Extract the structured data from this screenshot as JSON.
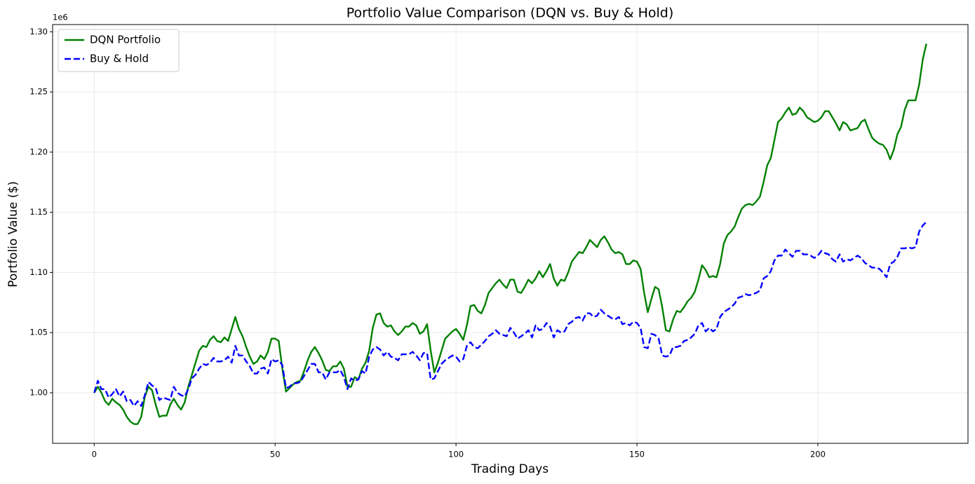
{
  "chart_data": {
    "type": "line",
    "title": "Portfolio Value Comparison (DQN vs. Buy & Hold)",
    "x_label": "Trading Days",
    "y_label": "Portfolio Value ($)",
    "y_offset_label": "1e6",
    "grid": true,
    "legend": "upper left",
    "xlim": [
      -11.5,
      241.5
    ],
    "ylim": [
      0.958,
      1.306
    ],
    "xticks": [
      0,
      50,
      100,
      150,
      200
    ],
    "yticks": [
      {
        "value": 1.0,
        "label": "1.00"
      },
      1.05,
      {
        "value": 1.1,
        "label": "1.10"
      },
      1.15,
      {
        "value": 1.2,
        "label": "1.20"
      },
      1.25,
      {
        "value": 1.3,
        "label": "1.30"
      }
    ],
    "x": [
      0,
      1,
      2,
      3,
      4,
      5,
      6,
      7,
      8,
      9,
      10,
      11,
      12,
      13,
      14,
      15,
      16,
      17,
      18,
      19,
      20,
      21,
      22,
      23,
      24,
      25,
      26,
      27,
      28,
      29,
      30,
      31,
      32,
      33,
      34,
      35,
      36,
      37,
      38,
      39,
      40,
      41,
      42,
      43,
      44,
      45,
      46,
      47,
      48,
      49,
      50,
      51,
      52,
      53,
      54,
      55,
      56,
      57,
      58,
      59,
      60,
      61,
      62,
      63,
      64,
      65,
      66,
      67,
      68,
      69,
      70,
      71,
      72,
      73,
      74,
      75,
      76,
      77,
      78,
      79,
      80,
      81,
      82,
      83,
      84,
      85,
      86,
      87,
      88,
      89,
      90,
      91,
      92,
      93,
      94,
      95,
      96,
      97,
      98,
      99,
      100,
      101,
      102,
      103,
      104,
      105,
      106,
      107,
      108,
      109,
      110,
      111,
      112,
      113,
      114,
      115,
      116,
      117,
      118,
      119,
      120,
      121,
      122,
      123,
      124,
      125,
      126,
      127,
      128,
      129,
      130,
      131,
      132,
      133,
      134,
      135,
      136,
      137,
      138,
      139,
      140,
      141,
      142,
      143,
      144,
      145,
      146,
      147,
      148,
      149,
      150,
      151,
      152,
      153,
      154,
      155,
      156,
      157,
      158,
      159,
      160,
      161,
      162,
      163,
      164,
      165,
      166,
      167,
      168,
      169,
      170,
      171,
      172,
      173,
      174,
      175,
      176,
      177,
      178,
      179,
      180,
      181,
      182,
      183,
      184,
      185,
      186,
      187,
      188,
      189,
      190,
      191,
      192,
      193,
      194,
      195,
      196,
      197,
      198,
      199,
      200,
      201,
      202,
      203,
      204,
      205,
      206,
      207,
      208,
      209,
      210,
      211,
      212,
      213,
      214,
      215,
      216,
      217,
      218,
      219,
      220,
      221,
      222,
      223,
      224,
      225,
      226,
      227,
      228,
      229,
      230
    ],
    "series": [
      {
        "name": "DQN Portfolio",
        "color": "#008000",
        "dash": false,
        "values": [
          1.0,
          1.005,
          1.0,
          0.993,
          0.99,
          0.995,
          0.992,
          0.99,
          0.986,
          0.98,
          0.976,
          0.974,
          0.974,
          0.98,
          0.997,
          1.005,
          1.002,
          0.99,
          0.98,
          0.981,
          0.981,
          0.99,
          0.995,
          0.99,
          0.986,
          0.992,
          1.005,
          1.015,
          1.025,
          1.035,
          1.039,
          1.038,
          1.044,
          1.047,
          1.043,
          1.042,
          1.046,
          1.043,
          1.053,
          1.063,
          1.053,
          1.047,
          1.038,
          1.03,
          1.024,
          1.026,
          1.031,
          1.028,
          1.034,
          1.045,
          1.045,
          1.043,
          1.02,
          1.001,
          1.004,
          1.007,
          1.009,
          1.01,
          1.018,
          1.027,
          1.034,
          1.038,
          1.033,
          1.027,
          1.019,
          1.018,
          1.022,
          1.022,
          1.026,
          1.02,
          1.005,
          1.005,
          1.013,
          1.011,
          1.02,
          1.025,
          1.035,
          1.054,
          1.065,
          1.066,
          1.058,
          1.055,
          1.056,
          1.051,
          1.048,
          1.051,
          1.055,
          1.055,
          1.058,
          1.056,
          1.049,
          1.051,
          1.057,
          1.035,
          1.017,
          1.025,
          1.035,
          1.045,
          1.048,
          1.051,
          1.053,
          1.049,
          1.044,
          1.056,
          1.072,
          1.073,
          1.068,
          1.066,
          1.073,
          1.083,
          1.087,
          1.091,
          1.094,
          1.09,
          1.087,
          1.094,
          1.094,
          1.084,
          1.083,
          1.088,
          1.094,
          1.091,
          1.095,
          1.101,
          1.096,
          1.101,
          1.107,
          1.095,
          1.089,
          1.094,
          1.093,
          1.1,
          1.109,
          1.113,
          1.117,
          1.116,
          1.121,
          1.127,
          1.124,
          1.121,
          1.127,
          1.13,
          1.125,
          1.119,
          1.116,
          1.117,
          1.115,
          1.107,
          1.107,
          1.11,
          1.109,
          1.103,
          1.083,
          1.067,
          1.078,
          1.088,
          1.086,
          1.071,
          1.052,
          1.051,
          1.061,
          1.068,
          1.067,
          1.071,
          1.076,
          1.079,
          1.084,
          1.094,
          1.106,
          1.102,
          1.096,
          1.097,
          1.096,
          1.107,
          1.124,
          1.131,
          1.134,
          1.138,
          1.146,
          1.153,
          1.156,
          1.157,
          1.156,
          1.159,
          1.163,
          1.175,
          1.189,
          1.195,
          1.21,
          1.225,
          1.228,
          1.233,
          1.237,
          1.231,
          1.232,
          1.237,
          1.234,
          1.229,
          1.227,
          1.225,
          1.226,
          1.229,
          1.234,
          1.234,
          1.229,
          1.224,
          1.218,
          1.225,
          1.223,
          1.218,
          1.219,
          1.22,
          1.225,
          1.227,
          1.219,
          1.212,
          1.209,
          1.207,
          1.206,
          1.202,
          1.194,
          1.202,
          1.215,
          1.221,
          1.235,
          1.243,
          1.243,
          1.243,
          1.256,
          1.277,
          1.29
        ]
      },
      {
        "name": "Buy & Hold",
        "color": "#0000ff",
        "dash": true,
        "values": [
          1.0,
          1.01,
          1.003,
          1.003,
          0.996,
          0.999,
          1.003,
          0.997,
          1.001,
          0.993,
          0.994,
          0.989,
          0.993,
          0.989,
          0.998,
          1.009,
          1.006,
          1.004,
          0.994,
          0.996,
          0.995,
          0.994,
          1.005,
          1.0,
          0.998,
          0.997,
          1.003,
          1.012,
          1.015,
          1.02,
          1.024,
          1.023,
          1.025,
          1.029,
          1.026,
          1.026,
          1.027,
          1.03,
          1.025,
          1.039,
          1.031,
          1.031,
          1.026,
          1.022,
          1.016,
          1.016,
          1.02,
          1.021,
          1.016,
          1.028,
          1.026,
          1.027,
          1.023,
          1.004,
          1.005,
          1.008,
          1.008,
          1.009,
          1.014,
          1.019,
          1.024,
          1.024,
          1.017,
          1.017,
          1.011,
          1.017,
          1.017,
          1.017,
          1.019,
          1.013,
          1.003,
          1.012,
          1.01,
          1.011,
          1.018,
          1.016,
          1.03,
          1.036,
          1.038,
          1.036,
          1.031,
          1.034,
          1.03,
          1.029,
          1.027,
          1.032,
          1.032,
          1.032,
          1.034,
          1.031,
          1.027,
          1.033,
          1.033,
          1.011,
          1.012,
          1.018,
          1.024,
          1.027,
          1.029,
          1.031,
          1.03,
          1.026,
          1.028,
          1.039,
          1.042,
          1.038,
          1.037,
          1.04,
          1.043,
          1.047,
          1.049,
          1.052,
          1.049,
          1.048,
          1.047,
          1.054,
          1.05,
          1.045,
          1.047,
          1.049,
          1.052,
          1.046,
          1.056,
          1.052,
          1.053,
          1.058,
          1.055,
          1.046,
          1.052,
          1.05,
          1.051,
          1.057,
          1.059,
          1.062,
          1.063,
          1.06,
          1.066,
          1.066,
          1.063,
          1.064,
          1.069,
          1.066,
          1.064,
          1.062,
          1.061,
          1.063,
          1.057,
          1.058,
          1.056,
          1.059,
          1.058,
          1.054,
          1.038,
          1.037,
          1.049,
          1.048,
          1.045,
          1.031,
          1.03,
          1.031,
          1.038,
          1.038,
          1.039,
          1.043,
          1.044,
          1.046,
          1.049,
          1.056,
          1.058,
          1.051,
          1.054,
          1.051,
          1.053,
          1.063,
          1.067,
          1.069,
          1.071,
          1.074,
          1.079,
          1.08,
          1.082,
          1.081,
          1.082,
          1.083,
          1.085,
          1.095,
          1.097,
          1.101,
          1.11,
          1.114,
          1.114,
          1.119,
          1.116,
          1.113,
          1.118,
          1.118,
          1.115,
          1.115,
          1.114,
          1.112,
          1.114,
          1.118,
          1.116,
          1.115,
          1.111,
          1.109,
          1.115,
          1.109,
          1.111,
          1.11,
          1.112,
          1.114,
          1.112,
          1.108,
          1.106,
          1.104,
          1.104,
          1.103,
          1.1,
          1.096,
          1.107,
          1.109,
          1.113,
          1.12,
          1.12,
          1.121,
          1.12,
          1.121,
          1.134,
          1.139,
          1.142
        ]
      }
    ]
  }
}
